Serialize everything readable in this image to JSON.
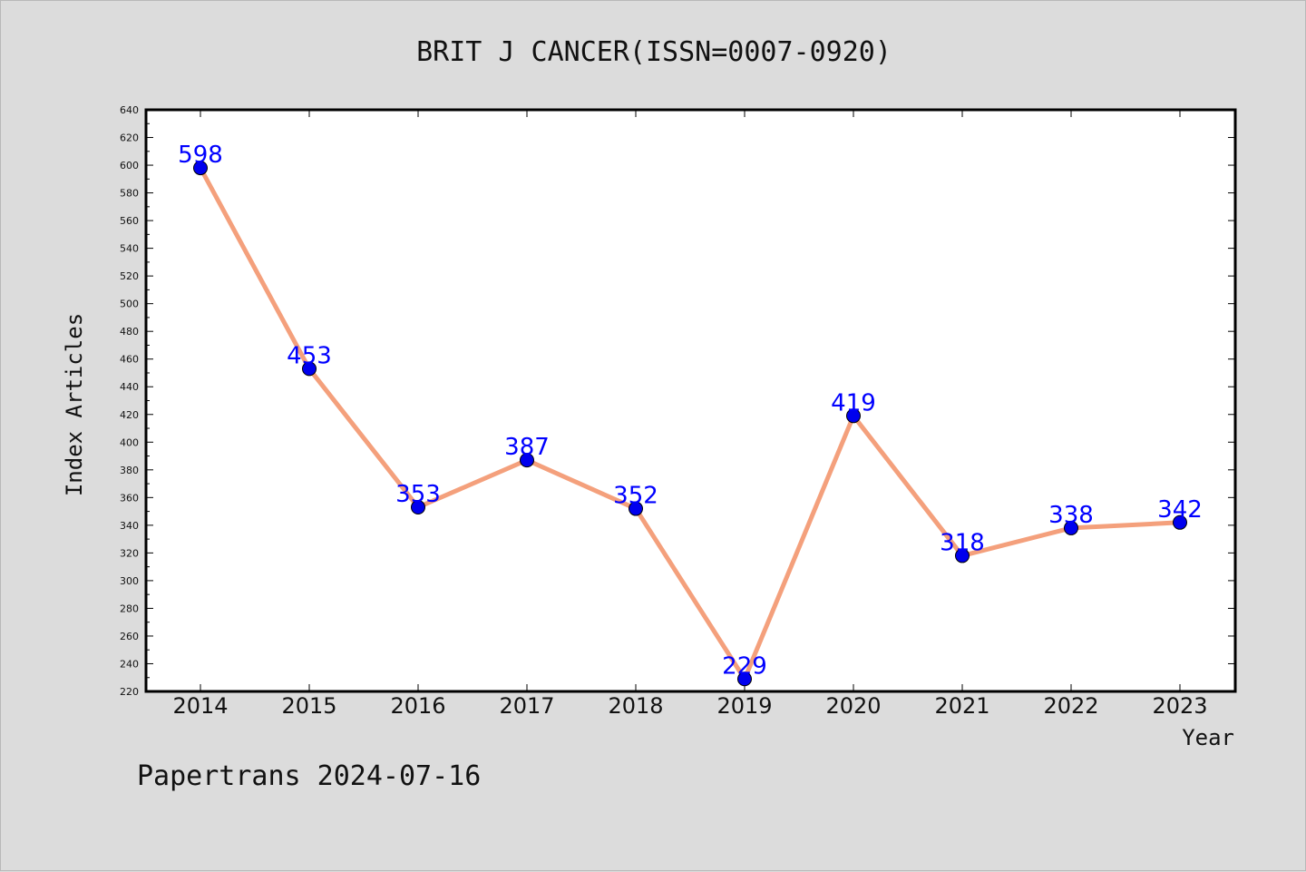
{
  "chart_data": {
    "type": "line",
    "title": "BRIT J CANCER(ISSN=0007-0920)",
    "xlabel": "Year",
    "ylabel": "Index Articles",
    "categories": [
      "2014",
      "2015",
      "2016",
      "2017",
      "2018",
      "2019",
      "2020",
      "2021",
      "2022",
      "2023"
    ],
    "series": [
      {
        "values": [
          598,
          453,
          353,
          387,
          352,
          229,
          419,
          318,
          338,
          342
        ]
      }
    ],
    "ylim": [
      220,
      640
    ],
    "ytick_step": 20,
    "grid": false,
    "line_color": "#f4a07c",
    "marker_color": "#0000ee",
    "label_color": "#0000ff"
  },
  "footer": {
    "note": "Papertrans 2024-07-16"
  }
}
